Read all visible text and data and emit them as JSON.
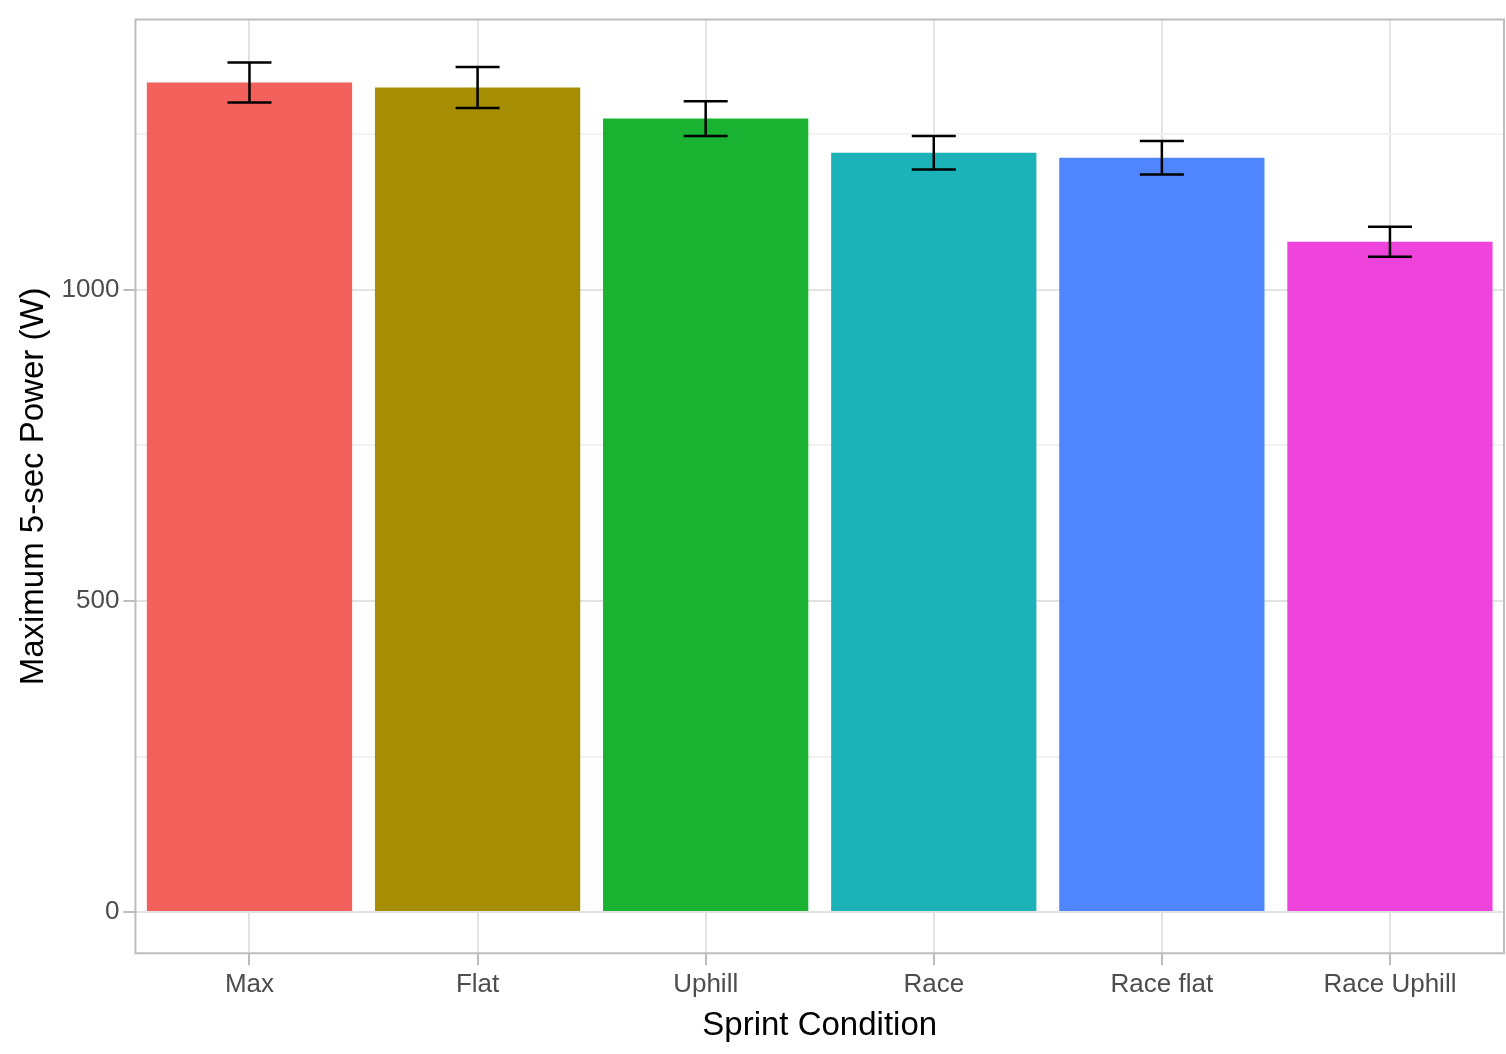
{
  "chart_data": {
    "type": "bar",
    "xlabel": "Sprint Condition",
    "ylabel": "Maximum 5-sec Power (W)",
    "categories": [
      "Max",
      "Flat",
      "Uphill",
      "Race",
      "Race flat",
      "Race Uphill"
    ],
    "values": [
      1333,
      1325,
      1275,
      1220,
      1212,
      1077
    ],
    "errors": [
      32,
      33,
      28,
      27,
      27,
      24
    ],
    "colors": [
      "#f2615b",
      "#a68e04",
      "#19b231",
      "#1bb3b8",
      "#4f86ff",
      "#ef44dc"
    ],
    "ylim": [
      -66,
      1434
    ],
    "yticks": [
      0,
      {
        "value": 250,
        "label": null
      },
      500,
      {
        "value": 750,
        "label": null
      },
      1000,
      {
        "value": 1250,
        "label": null
      }
    ],
    "grid": true,
    "legend": false
  }
}
